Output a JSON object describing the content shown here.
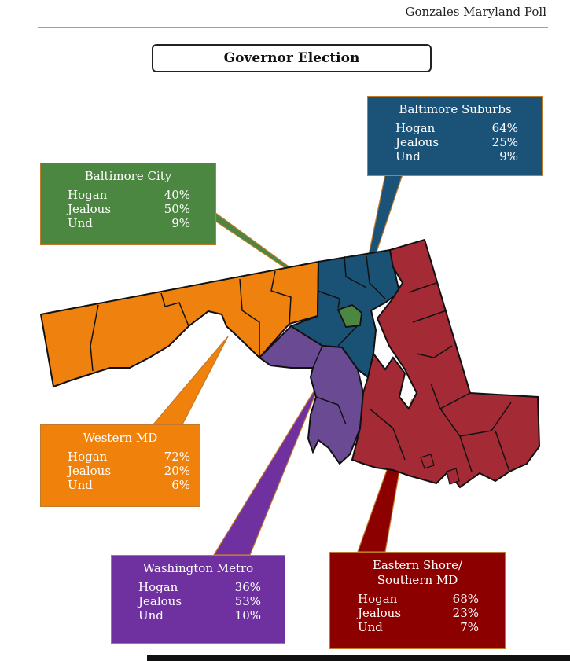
{
  "header": {
    "poll_name": "Gonzales Maryland Poll"
  },
  "title": "Governor Election",
  "regions": [
    {
      "id": "baltimore-suburbs",
      "name": "Baltimore Suburbs",
      "color": "#1b5278",
      "results": [
        {
          "candidate": "Hogan",
          "pct": "64%"
        },
        {
          "candidate": "Jealous",
          "pct": "25%"
        },
        {
          "candidate": "Und",
          "pct": "9%"
        }
      ]
    },
    {
      "id": "baltimore-city",
      "name": "Baltimore City",
      "color": "#4c8741",
      "results": [
        {
          "candidate": "Hogan",
          "pct": "40%"
        },
        {
          "candidate": "Jealous",
          "pct": "50%"
        },
        {
          "candidate": "Und",
          "pct": "9%"
        }
      ]
    },
    {
      "id": "western-md",
      "name": "Western MD",
      "color": "#f0820c",
      "results": [
        {
          "candidate": "Hogan",
          "pct": "72%"
        },
        {
          "candidate": "Jealous",
          "pct": "20%"
        },
        {
          "candidate": "Und",
          "pct": "6%"
        }
      ]
    },
    {
      "id": "washington-metro",
      "name": "Washington Metro",
      "color": "#6f30a0",
      "results": [
        {
          "candidate": "Hogan",
          "pct": "36%"
        },
        {
          "candidate": "Jealous",
          "pct": "53%"
        },
        {
          "candidate": "Und",
          "pct": "10%"
        }
      ]
    },
    {
      "id": "eastern-shore",
      "name": "Eastern Shore/ Southern MD",
      "name_line1": "Eastern Shore/",
      "name_line2": "Southern MD",
      "color": "#8c0000",
      "results": [
        {
          "candidate": "Hogan",
          "pct": "68%"
        },
        {
          "candidate": "Jealous",
          "pct": "23%"
        },
        {
          "candidate": "Und",
          "pct": "7%"
        }
      ]
    }
  ],
  "map_colors": {
    "western": "#ef820f",
    "baltimore": "#1a5276",
    "city": "#4b8741",
    "metro": "#6a4b93",
    "eastern": "#a42a36",
    "border": "#111111"
  }
}
